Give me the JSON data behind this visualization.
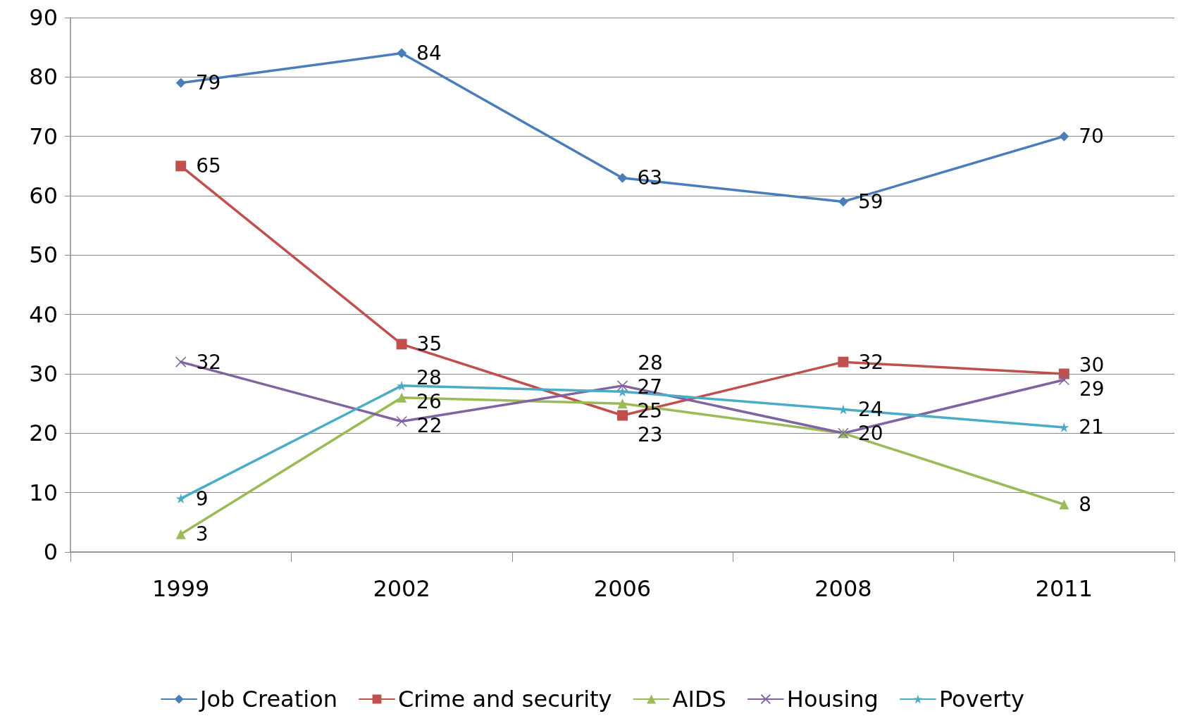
{
  "chart_data": {
    "type": "line",
    "categories": [
      "1999",
      "2002",
      "2006",
      "2008",
      "2011"
    ],
    "series": [
      {
        "name": "Job Creation",
        "color": "#4a7ebb",
        "marker": "diamond",
        "values": [
          79,
          84,
          63,
          59,
          70
        ]
      },
      {
        "name": "Crime and security",
        "color": "#c0504d",
        "marker": "square",
        "values": [
          65,
          35,
          23,
          32,
          30
        ]
      },
      {
        "name": "AIDS",
        "color": "#9bbb59",
        "marker": "triangle",
        "values": [
          3,
          26,
          25,
          20,
          8
        ]
      },
      {
        "name": "Housing",
        "color": "#8064a2",
        "marker": "cross",
        "values": [
          32,
          22,
          28,
          20,
          29
        ],
        "value_labels": [
          "32",
          "22",
          "28",
          null,
          "29"
        ]
      },
      {
        "name": "Poverty",
        "color": "#4bacc6",
        "marker": "star",
        "values": [
          9,
          28,
          27,
          24,
          21
        ]
      }
    ],
    "ylim": [
      0,
      90
    ],
    "yticks": [
      0,
      10,
      20,
      30,
      40,
      50,
      60,
      70,
      80,
      90
    ],
    "grid": "y",
    "legend": "bottom",
    "data_labels": true,
    "line_style": "solid"
  }
}
